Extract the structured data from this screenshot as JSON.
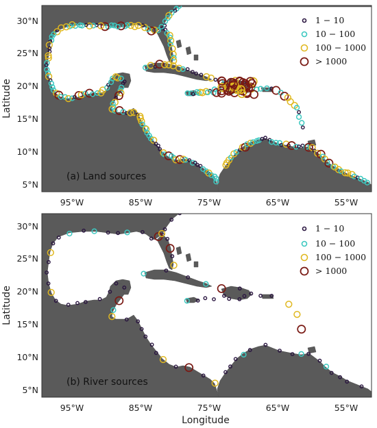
{
  "panels": [
    {
      "id": "a",
      "label": "(a) Land sources",
      "legend": [
        "1 − 10",
        "10 − 100",
        "100 − 1000",
        "> 1000"
      ]
    },
    {
      "id": "b",
      "label": "(b) River sources",
      "legend": [
        "1 − 10",
        "10 − 100",
        "100 − 1000",
        "> 1000"
      ]
    }
  ],
  "axes": {
    "ylabel": "Latitude",
    "xlabel": "Longitude",
    "lat_ticks": [
      "30°N",
      "25°N",
      "20°N",
      "15°N",
      "10°N",
      "5°N"
    ],
    "lon_ticks": [
      "95°W",
      "85°W",
      "75°W",
      "65°W",
      "55°W"
    ]
  },
  "colors": {
    "land": "#5a5a5a",
    "class_1_10": "#2a1540",
    "class_10_100": "#3cc8c0",
    "class_100_1000": "#e0b820",
    "class_gt_1000": "#7a1a14"
  },
  "chart_data": {
    "type": "scatter",
    "lon_range": [
      -99,
      -51
    ],
    "lat_range": [
      4,
      32
    ],
    "classes": [
      "1 − 10",
      "10 − 100",
      "100 − 1000",
      "> 1000"
    ]
  }
}
